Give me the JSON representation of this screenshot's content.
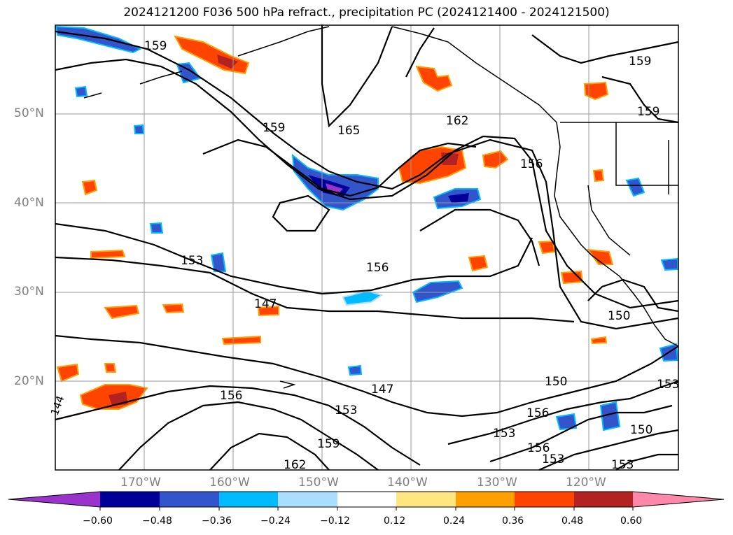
{
  "title": "2024121200 F036 500 hPa refract., precipitation PC (2024121400 - 2024121500)",
  "lat_labels": [
    "50°N",
    "40°N",
    "30°N",
    "20°N"
  ],
  "lon_labels": [
    "170°W",
    "160°W",
    "150°W",
    "140°W",
    "130°W",
    "120°W"
  ],
  "colorbar": {
    "ticks": [
      "−0.60",
      "−0.48",
      "−0.36",
      "−0.24",
      "−0.12",
      "0.12",
      "0.24",
      "0.36",
      "0.48",
      "0.60"
    ],
    "colors": [
      "#9933cc",
      "#000099",
      "#3355cc",
      "#00bbff",
      "#aaddff",
      "#ffffff",
      "#ffe680",
      "#ffa000",
      "#ff4400",
      "#b22222",
      "#ff88aa"
    ]
  },
  "contour_labels": [
    "159",
    "165",
    "162",
    "159",
    "156",
    "159",
    "159",
    "156",
    "153",
    "147",
    "156",
    "150",
    "150",
    "153",
    "156",
    "147",
    "153",
    "159",
    "162",
    "153",
    "156",
    "150",
    "153",
    "153",
    "144"
  ],
  "legend_colors": {
    "contour": "#000000",
    "grid": "#9a9a9a",
    "coast": "#000000"
  }
}
